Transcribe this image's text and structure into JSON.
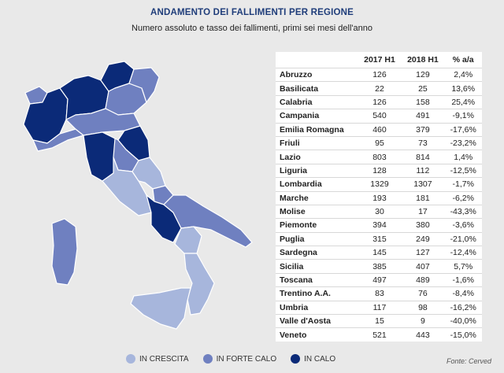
{
  "header": {
    "title": "ANDAMENTO DEI FALLIMENTI PER REGIONE",
    "subtitle": "Numero assoluto e tasso dei fallimenti, primi sei mesi dell'anno"
  },
  "colors": {
    "in_crescita": "#a7b6dc",
    "in_forte_calo": "#6f80c0",
    "in_calo": "#0b2a78"
  },
  "chart_data": {
    "type": "table",
    "columns": [
      "",
      "2017 H1",
      "2018 H1",
      "% a/a"
    ],
    "rows": [
      {
        "region": "Abruzzo",
        "h1_2017": "126",
        "h1_2018": "129",
        "change": "2,4%",
        "status": "in_crescita"
      },
      {
        "region": "Basilicata",
        "h1_2017": "22",
        "h1_2018": "25",
        "change": "13,6%",
        "status": "in_crescita"
      },
      {
        "region": "Calabria",
        "h1_2017": "126",
        "h1_2018": "158",
        "change": "25,4%",
        "status": "in_crescita"
      },
      {
        "region": "Campania",
        "h1_2017": "540",
        "h1_2018": "491",
        "change": "-9,1%",
        "status": "in_calo"
      },
      {
        "region": "Emilia Romagna",
        "h1_2017": "460",
        "h1_2018": "379",
        "change": "-17,6%",
        "status": "in_forte_calo"
      },
      {
        "region": "Friuli",
        "h1_2017": "95",
        "h1_2018": "73",
        "change": "-23,2%",
        "status": "in_forte_calo"
      },
      {
        "region": "Lazio",
        "h1_2017": "803",
        "h1_2018": "814",
        "change": "1,4%",
        "status": "in_crescita"
      },
      {
        "region": "Liguria",
        "h1_2017": "128",
        "h1_2018": "112",
        "change": "-12,5%",
        "status": "in_forte_calo"
      },
      {
        "region": "Lombardia",
        "h1_2017": "1329",
        "h1_2018": "1307",
        "change": "-1,7%",
        "status": "in_calo"
      },
      {
        "region": "Marche",
        "h1_2017": "193",
        "h1_2018": "181",
        "change": "-6,2%",
        "status": "in_calo"
      },
      {
        "region": "Molise",
        "h1_2017": "30",
        "h1_2018": "17",
        "change": "-43,3%",
        "status": "in_forte_calo"
      },
      {
        "region": "Piemonte",
        "h1_2017": "394",
        "h1_2018": "380",
        "change": "-3,6%",
        "status": "in_calo"
      },
      {
        "region": "Puglia",
        "h1_2017": "315",
        "h1_2018": "249",
        "change": "-21,0%",
        "status": "in_forte_calo"
      },
      {
        "region": "Sardegna",
        "h1_2017": "145",
        "h1_2018": "127",
        "change": "-12,4%",
        "status": "in_forte_calo"
      },
      {
        "region": "Sicilia",
        "h1_2017": "385",
        "h1_2018": "407",
        "change": "5,7%",
        "status": "in_crescita"
      },
      {
        "region": "Toscana",
        "h1_2017": "497",
        "h1_2018": "489",
        "change": "-1,6%",
        "status": "in_calo"
      },
      {
        "region": "Trentino A.A.",
        "h1_2017": "83",
        "h1_2018": "76",
        "change": "-8,4%",
        "status": "in_calo"
      },
      {
        "region": "Umbria",
        "h1_2017": "117",
        "h1_2018": "98",
        "change": "-16,2%",
        "status": "in_forte_calo"
      },
      {
        "region": "Valle d'Aosta",
        "h1_2017": "15",
        "h1_2018": "9",
        "change": "-40,0%",
        "status": "in_forte_calo"
      },
      {
        "region": "Veneto",
        "h1_2017": "521",
        "h1_2018": "443",
        "change": "-15,0%",
        "status": "in_forte_calo"
      }
    ]
  },
  "legend": {
    "in_crescita": "IN CRESCITA",
    "in_forte_calo": "IN FORTE CALO",
    "in_calo": "IN CALO"
  },
  "source": "Fonte: Cerved"
}
